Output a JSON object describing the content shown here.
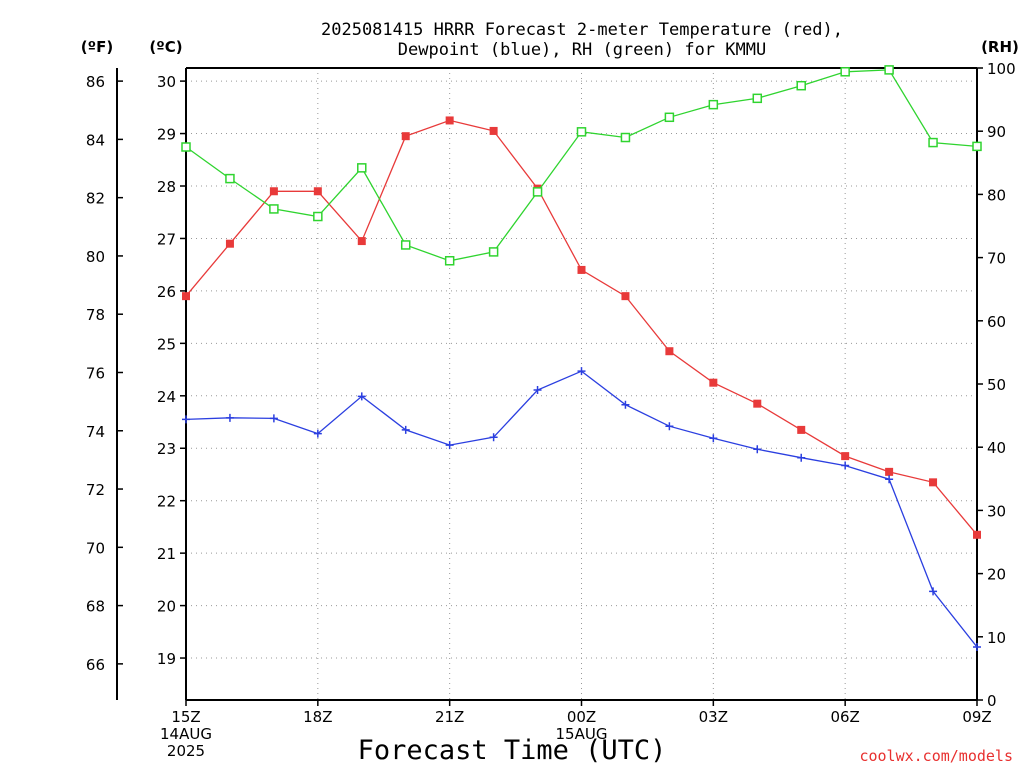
{
  "chart_data": {
    "type": "line",
    "title": "2025081415 HRRR Forecast 2-meter Temperature (red),",
    "subtitle": "Dewpoint (blue), RH (green) for KMMU",
    "xlabel": "Forecast Time (UTC)",
    "credit": "coolwx.com/models",
    "y_left_outer_label": "(ºF)",
    "y_left_inner_label": "(ºC)",
    "y_right_label": "(RH)",
    "x_hours": [
      0,
      1,
      2,
      3,
      4,
      5,
      6,
      7,
      8,
      9,
      10,
      11,
      12,
      13,
      14,
      15,
      16,
      17,
      18
    ],
    "x_ticks": [
      {
        "hour": 0,
        "lines": [
          "15Z",
          "14AUG",
          "2025"
        ]
      },
      {
        "hour": 3,
        "lines": [
          "18Z"
        ]
      },
      {
        "hour": 6,
        "lines": [
          "21Z"
        ]
      },
      {
        "hour": 9,
        "lines": [
          "00Z",
          "15AUG"
        ]
      },
      {
        "hour": 12,
        "lines": [
          "03Z"
        ]
      },
      {
        "hour": 15,
        "lines": [
          "06Z"
        ]
      },
      {
        "hour": 18,
        "lines": [
          "09Z"
        ]
      }
    ],
    "celsius_ticks": [
      19,
      20,
      21,
      22,
      23,
      24,
      25,
      26,
      27,
      28,
      29,
      30
    ],
    "fahrenheit_ticks": [
      66,
      68,
      70,
      72,
      74,
      76,
      78,
      80,
      82,
      84,
      86
    ],
    "rh_ticks": [
      0,
      10,
      20,
      30,
      40,
      50,
      60,
      70,
      80,
      90,
      100
    ],
    "celsius_range": [
      18.2,
      30.25
    ],
    "rh_range": [
      0,
      100
    ],
    "series": [
      {
        "name": "Temperature",
        "color": "#e83a3a",
        "marker": "filled-square",
        "axis": "celsius",
        "values": [
          25.9,
          26.9,
          27.9,
          27.9,
          26.95,
          28.95,
          29.25,
          29.05,
          27.95,
          26.4,
          25.9,
          24.85,
          24.25,
          23.85,
          23.35,
          22.85,
          22.55,
          22.35,
          21.35
        ]
      },
      {
        "name": "Dewpoint",
        "color": "#2b3fe0",
        "marker": "plus",
        "axis": "celsius",
        "values": [
          23.55,
          23.58,
          23.57,
          23.28,
          23.99,
          23.35,
          23.06,
          23.21,
          24.11,
          24.47,
          23.83,
          23.42,
          23.19,
          22.98,
          22.82,
          22.67,
          22.41,
          20.27,
          19.21
        ]
      },
      {
        "name": "RH",
        "color": "#2fd42f",
        "marker": "open-square",
        "axis": "rh",
        "values": [
          87.5,
          82.5,
          77.7,
          76.5,
          84.2,
          72.0,
          69.5,
          70.9,
          80.4,
          89.9,
          89.0,
          92.2,
          94.2,
          95.2,
          97.2,
          99.4,
          99.7,
          88.2,
          87.6
        ]
      }
    ]
  }
}
